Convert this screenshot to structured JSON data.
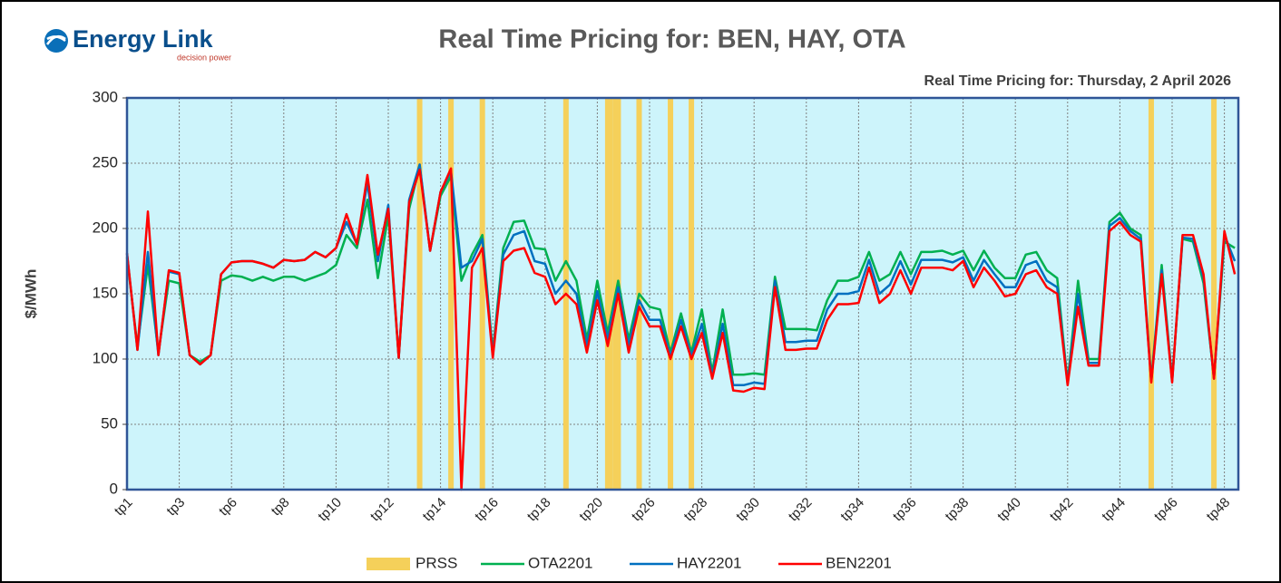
{
  "logo": {
    "name": "Energy Link",
    "tagline": "decision power"
  },
  "chart_data": {
    "type": "line",
    "title": "Real Time Pricing for: BEN, HAY, OTA",
    "subtitle": "Real Time Pricing for: Thursday, 2 April 2026",
    "y_label": "$/MWh",
    "categories": [
      "tp1",
      null,
      null,
      null,
      null,
      "tp3",
      null,
      null,
      null,
      null,
      "tp6",
      null,
      null,
      null,
      null,
      "tp8",
      null,
      null,
      null,
      null,
      "tp10",
      null,
      null,
      null,
      null,
      "tp12",
      null,
      null,
      null,
      null,
      "tp14",
      null,
      null,
      null,
      null,
      "tp16",
      null,
      null,
      null,
      null,
      "tp18",
      null,
      null,
      null,
      null,
      "tp20",
      null,
      null,
      null,
      null,
      "tp26",
      null,
      null,
      null,
      null,
      "tp28",
      null,
      null,
      null,
      null,
      "tp30",
      null,
      null,
      null,
      null,
      "tp32",
      null,
      null,
      null,
      null,
      "tp34",
      null,
      null,
      null,
      null,
      "tp36",
      null,
      null,
      null,
      null,
      "tp38",
      null,
      null,
      null,
      null,
      "tp40",
      null,
      null,
      null,
      null,
      "tp42",
      null,
      null,
      null,
      null,
      "tp44",
      null,
      null,
      null,
      null,
      "tp46",
      null,
      null,
      null,
      null,
      "tp48",
      null
    ],
    "ylim": [
      0,
      300
    ],
    "yticks": [
      0,
      50,
      100,
      150,
      200,
      250,
      300
    ],
    "grid": true,
    "bands": {
      "name": "PRSS",
      "color": "#f5d05a",
      "values": [
        null,
        null,
        null,
        null,
        null,
        null,
        null,
        null,
        null,
        null,
        null,
        null,
        null,
        null,
        null,
        null,
        null,
        null,
        null,
        null,
        null,
        null,
        null,
        null,
        null,
        null,
        null,
        null,
        300,
        null,
        null,
        300,
        null,
        null,
        300,
        null,
        null,
        null,
        null,
        null,
        null,
        null,
        300,
        null,
        null,
        null,
        300,
        300,
        null,
        300,
        null,
        null,
        300,
        null,
        300,
        null,
        null,
        null,
        null,
        null,
        null,
        null,
        null,
        null,
        null,
        null,
        null,
        null,
        null,
        null,
        null,
        null,
        null,
        null,
        null,
        null,
        null,
        null,
        null,
        null,
        null,
        null,
        null,
        null,
        null,
        null,
        null,
        null,
        null,
        null,
        null,
        null,
        null,
        null,
        null,
        null,
        null,
        null,
        300,
        null,
        null,
        null,
        null,
        null,
        300,
        null,
        null
      ]
    },
    "series": [
      {
        "name": "OTA2201",
        "color": "#00b050",
        "values": [
          178,
          110,
          172,
          105,
          160,
          158,
          103,
          98,
          103,
          160,
          164,
          163,
          160,
          163,
          160,
          163,
          163,
          160,
          163,
          166,
          172,
          195,
          185,
          222,
          162,
          210,
          101,
          215,
          248,
          183,
          225,
          240,
          160,
          180,
          195,
          105,
          185,
          205,
          206,
          185,
          184,
          160,
          175,
          160,
          115,
          160,
          120,
          160,
          115,
          150,
          140,
          138,
          105,
          135,
          105,
          138,
          90,
          138,
          88,
          88,
          89,
          88,
          163,
          123,
          123,
          123,
          122,
          145,
          160,
          160,
          163,
          182,
          160,
          165,
          182,
          165,
          182,
          182,
          183,
          180,
          183,
          168,
          183,
          170,
          162,
          162,
          180,
          182,
          168,
          162,
          82,
          160,
          100,
          100,
          205,
          212,
          200,
          195,
          84,
          172,
          84,
          192,
          190,
          158,
          86,
          190,
          185
        ]
      },
      {
        "name": "HAY2201",
        "color": "#0070c0",
        "values": [
          181,
          107,
          182,
          103,
          167,
          165,
          103,
          96,
          103,
          165,
          174,
          175,
          175,
          173,
          170,
          176,
          175,
          176,
          182,
          178,
          185,
          205,
          188,
          235,
          175,
          218,
          101,
          222,
          249,
          183,
          228,
          244,
          170,
          175,
          192,
          103,
          180,
          195,
          198,
          175,
          173,
          150,
          160,
          150,
          110,
          152,
          115,
          155,
          110,
          145,
          130,
          130,
          102,
          130,
          102,
          127,
          87,
          127,
          80,
          80,
          82,
          81,
          160,
          113,
          113,
          114,
          114,
          138,
          150,
          150,
          152,
          176,
          150,
          157,
          175,
          157,
          176,
          176,
          176,
          174,
          178,
          160,
          176,
          165,
          155,
          155,
          172,
          175,
          160,
          155,
          81,
          150,
          97,
          97,
          202,
          208,
          198,
          192,
          83,
          168,
          83,
          193,
          192,
          162,
          85,
          195,
          175
        ]
      },
      {
        "name": "BEN2201",
        "color": "#ff0000",
        "values": [
          181,
          107,
          213,
          103,
          168,
          166,
          103,
          96,
          103,
          165,
          174,
          175,
          175,
          173,
          170,
          176,
          175,
          176,
          182,
          178,
          185,
          211,
          188,
          241,
          180,
          215,
          101,
          220,
          245,
          183,
          228,
          246,
          0,
          170,
          185,
          101,
          175,
          183,
          185,
          166,
          163,
          142,
          150,
          142,
          105,
          145,
          110,
          150,
          105,
          140,
          125,
          125,
          100,
          125,
          100,
          120,
          85,
          120,
          76,
          75,
          78,
          77,
          155,
          107,
          107,
          108,
          108,
          130,
          142,
          142,
          143,
          170,
          143,
          150,
          168,
          150,
          170,
          170,
          170,
          168,
          175,
          155,
          170,
          160,
          148,
          150,
          165,
          168,
          155,
          150,
          80,
          140,
          95,
          95,
          198,
          205,
          195,
          190,
          82,
          165,
          82,
          195,
          195,
          165,
          85,
          198,
          165
        ]
      }
    ]
  }
}
